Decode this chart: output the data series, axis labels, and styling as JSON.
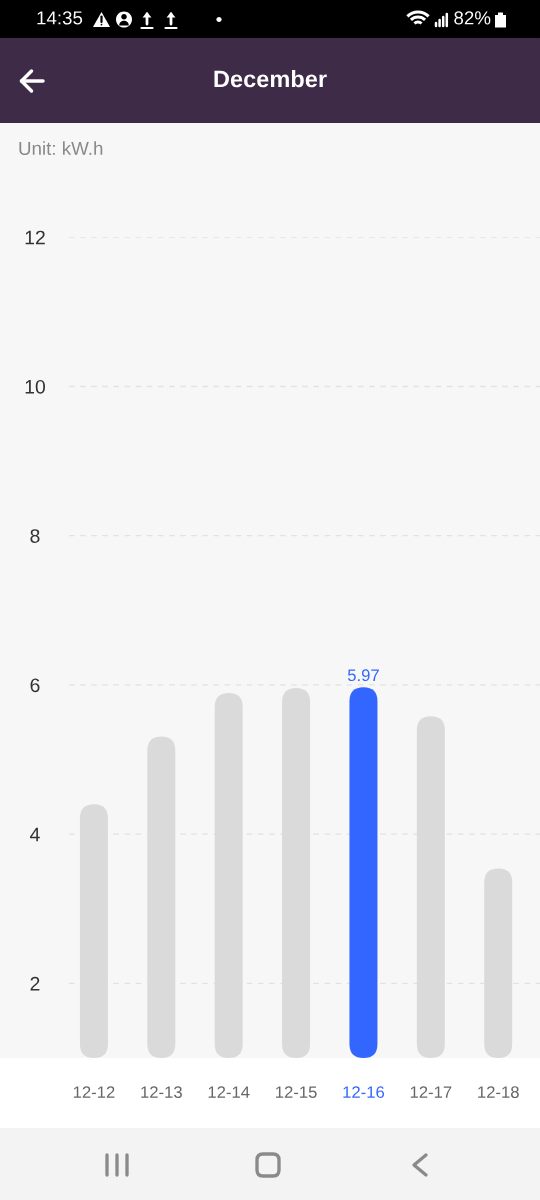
{
  "chart_data": {
    "type": "bar",
    "title": "December",
    "ylabel": "Unit: kW.h",
    "categories": [
      "12-12",
      "12-13",
      "12-14",
      "12-15",
      "12-16",
      "12-17",
      "12-18"
    ],
    "values": [
      4.4,
      5.31,
      5.89,
      5.96,
      5.97,
      5.58,
      3.54
    ],
    "colors": [
      "#dadada",
      "#dadada",
      "#dadada",
      "#dadada",
      "#3366ff",
      "#dadada",
      "#dadada"
    ],
    "value_labels": [
      null,
      null,
      null,
      null,
      "5.97",
      null,
      null
    ],
    "ylim": [
      1,
      12
    ],
    "yticks": [
      2,
      4,
      6,
      8,
      10,
      12
    ],
    "grid": "y",
    "annotations": [
      "14:35",
      "82%"
    ]
  }
}
